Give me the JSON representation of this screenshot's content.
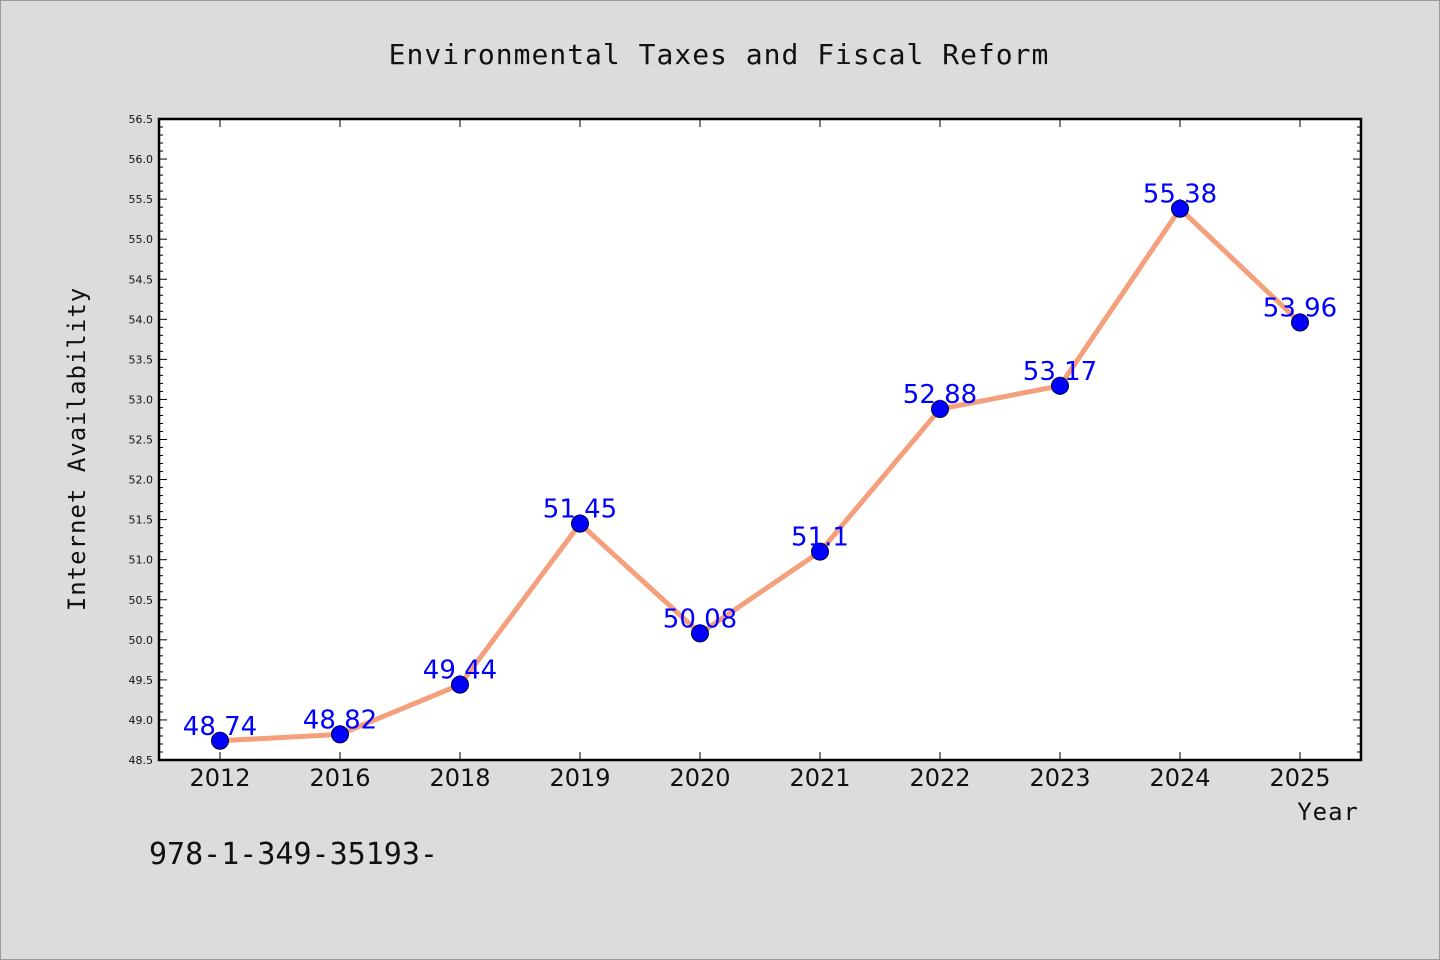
{
  "chart_data": {
    "type": "line",
    "title": "Environmental Taxes and Fiscal Reform",
    "xlabel": "Year",
    "ylabel": "Internet Availability",
    "categories": [
      "2012",
      "2016",
      "2018",
      "2019",
      "2020",
      "2021",
      "2022",
      "2023",
      "2024",
      "2025"
    ],
    "values": [
      48.74,
      48.82,
      49.44,
      51.45,
      50.08,
      51.1,
      52.88,
      53.17,
      55.38,
      53.96
    ],
    "data_labels": [
      "48.74",
      "48.82",
      "49.44",
      "51.45",
      "50.08",
      "51.1",
      "52.88",
      "53.17",
      "55.38",
      "53.96"
    ],
    "ylim": [
      48.5,
      56.5
    ],
    "yticks": [
      "48.5",
      "49.0",
      "49.5",
      "50.0",
      "50.5",
      "51.0",
      "51.5",
      "52.0",
      "52.5",
      "53.0",
      "53.5",
      "54.0",
      "54.5",
      "55.0",
      "55.5",
      "56.0",
      "56.5"
    ],
    "grid": false,
    "legend": "none",
    "line_color": "#f4a07c",
    "marker_color": "#0000ff",
    "label_color": "#0000ff",
    "background_color": "#dcdcdc",
    "plot_background_color": "#ffffff"
  },
  "footnote": "978-1-349-35193-"
}
